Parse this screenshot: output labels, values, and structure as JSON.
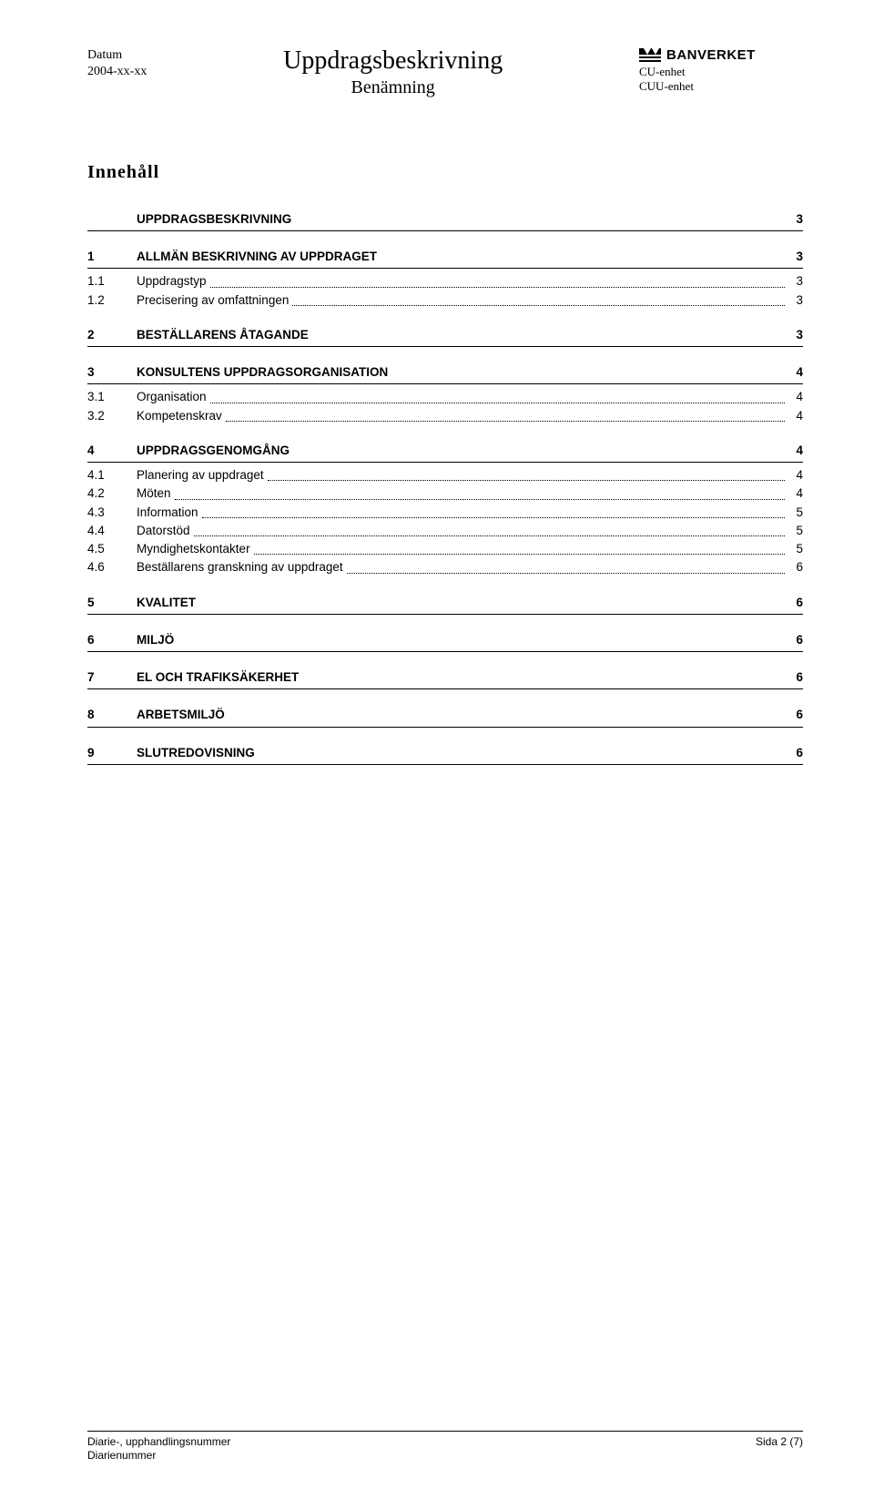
{
  "header": {
    "left_label": "Datum",
    "left_value": "2004-xx-xx",
    "center_title": "Uppdragsbeskrivning",
    "center_subtitle": "Benämning",
    "brand": "BANVERKET",
    "right_line1": "CU-enhet",
    "right_line2": "CUU-enhet"
  },
  "toc": {
    "title": "Innehåll",
    "sections": [
      {
        "num": "",
        "label": "UPPDRAGSBESKRIVNING",
        "page": "3",
        "subs": []
      },
      {
        "num": "1",
        "label": "ALLMÄN BESKRIVNING AV UPPDRAGET",
        "page": "3",
        "subs": [
          {
            "num": "1.1",
            "label": "Uppdragstyp",
            "page": "3"
          },
          {
            "num": "1.2",
            "label": "Precisering av omfattningen",
            "page": "3"
          }
        ]
      },
      {
        "num": "2",
        "label": "BESTÄLLARENS ÅTAGANDE",
        "page": "3",
        "subs": []
      },
      {
        "num": "3",
        "label": "KONSULTENS UPPDRAGSORGANISATION",
        "page": "4",
        "subs": [
          {
            "num": "3.1",
            "label": "Organisation",
            "page": "4"
          },
          {
            "num": "3.2",
            "label": "Kompetenskrav",
            "page": "4"
          }
        ]
      },
      {
        "num": "4",
        "label": "UPPDRAGSGENOMGÅNG",
        "page": "4",
        "subs": [
          {
            "num": "4.1",
            "label": "Planering av uppdraget",
            "page": "4"
          },
          {
            "num": "4.2",
            "label": "Möten",
            "page": "4"
          },
          {
            "num": "4.3",
            "label": "Information",
            "page": "5"
          },
          {
            "num": "4.4",
            "label": "Datorstöd",
            "page": "5"
          },
          {
            "num": "4.5",
            "label": "Myndighetskontakter",
            "page": "5"
          },
          {
            "num": "4.6",
            "label": "Beställarens granskning av uppdraget",
            "page": "6"
          }
        ]
      },
      {
        "num": "5",
        "label": "KVALITET",
        "page": "6",
        "subs": []
      },
      {
        "num": "6",
        "label": "MILJÖ",
        "page": "6",
        "subs": []
      },
      {
        "num": "7",
        "label": "EL OCH TRAFIKSÄKERHET",
        "page": "6",
        "subs": []
      },
      {
        "num": "8",
        "label": "ARBETSMILJÖ",
        "page": "6",
        "subs": []
      },
      {
        "num": "9",
        "label": "SLUTREDOVISNING",
        "page": "6",
        "subs": []
      }
    ]
  },
  "footer": {
    "left_line1": "Diarie-, upphandlingsnummer",
    "left_line2": "Diarienummer",
    "right": "Sida 2 (7)"
  }
}
